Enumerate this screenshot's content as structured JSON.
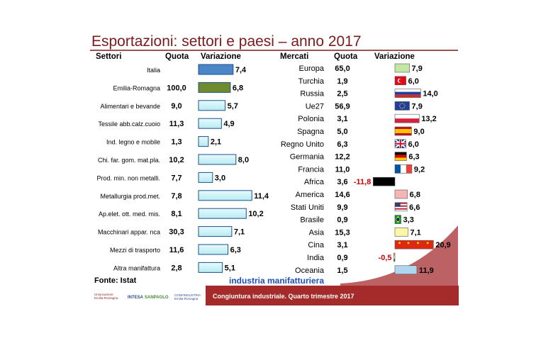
{
  "title": "Esportazioni: settori e paesi – anno 2017",
  "source": "Fonte: Istat",
  "subtitle": "industria manifatturiera",
  "footer": {
    "logos": [
      "Unioncamere Emilia-Romagna",
      "INTESA SANPAOLO",
      "CONFINDUSTRIA Emilia-Romagna"
    ],
    "text": "Congiuntura industriale. Quarto trimestre 2017"
  },
  "colors": {
    "title": "#7b1a1a",
    "bar_default": "#c6f0f5",
    "bar_border": "#1f4f8f",
    "italia": "#4a86c8",
    "emilia": "#6e8c2e",
    "negative_label": "#d00000",
    "subtitle": "#1f4fb5",
    "footer_band": "#a52a2a"
  },
  "chart_data": [
    {
      "type": "bar",
      "orientation": "horizontal",
      "headers": {
        "category": "Settori",
        "share": "Quota",
        "value": "Variazione"
      },
      "categories": [
        "Italia",
        "Emilia-Romagna",
        "Alimentari e bevande",
        "Tessile abb.calz.cuoio",
        "Ind. legno e mobile",
        "Chi. far. gom. mat.pla.",
        "Prod. min. non metalli.",
        "Metallurgia prod.met.",
        "Ap.elet. ott. med. mis.",
        "Macchinari appar. nca",
        "Mezzi di trasporto",
        "Altra manifattura"
      ],
      "quota": [
        "",
        "100,0",
        "9,0",
        "11,3",
        "1,3",
        "10,2",
        "7,7",
        "7,8",
        "8,1",
        "30,3",
        "11,6",
        "2,8"
      ],
      "values": [
        7.4,
        6.8,
        5.7,
        4.9,
        2.1,
        8.0,
        3.0,
        11.4,
        10.2,
        7.1,
        6.3,
        5.1
      ],
      "value_labels": [
        "7,4",
        "6,8",
        "5,7",
        "4,9",
        "2,1",
        "8,0",
        "3,0",
        "11,4",
        "10,2",
        "7,1",
        "6,3",
        "5,1"
      ]
    },
    {
      "type": "bar",
      "orientation": "horizontal",
      "headers": {
        "category": "Mercati",
        "share": "Quota",
        "value": "Variazione"
      },
      "categories": [
        "Europa",
        "Turchia",
        "Russia",
        "Ue27",
        "Polonia",
        "Spagna",
        "Regno Unito",
        "Germania",
        "Francia",
        "Africa",
        "America",
        "Stati Uniti",
        "Brasile",
        "Asia",
        "Cina",
        "India",
        "Oceania"
      ],
      "quota": [
        "65,0",
        "1,9",
        "2,5",
        "56,9",
        "3,1",
        "5,0",
        "6,3",
        "12,2",
        "11,0",
        "3,6",
        "14,6",
        "9,9",
        "0,9",
        "15,3",
        "3,1",
        "0,9",
        "1,5"
      ],
      "values": [
        7.9,
        6.0,
        14.0,
        7.9,
        13.2,
        9.0,
        6.0,
        6.3,
        9.2,
        -11.8,
        6.8,
        6.6,
        3.3,
        7.1,
        20.9,
        -0.5,
        11.9
      ],
      "value_labels": [
        "7,9",
        "6,0",
        "14,0",
        "7,9",
        "13,2",
        "9,0",
        "6,0",
        "6,3",
        "9,2",
        "-11,8",
        "6,8",
        "6,6",
        "3,3",
        "7,1",
        "20,9",
        "-0,5",
        "11,9"
      ],
      "bar_styles": [
        "green",
        "flag-turkey",
        "flag-russia",
        "flag-eu",
        "flag-poland",
        "flag-spain",
        "flag-uk",
        "flag-germany",
        "flag-france",
        "black",
        "pink",
        "flag-usa",
        "flag-brazil",
        "yellow",
        "flag-china",
        "flag-india",
        "lightblue"
      ]
    }
  ]
}
